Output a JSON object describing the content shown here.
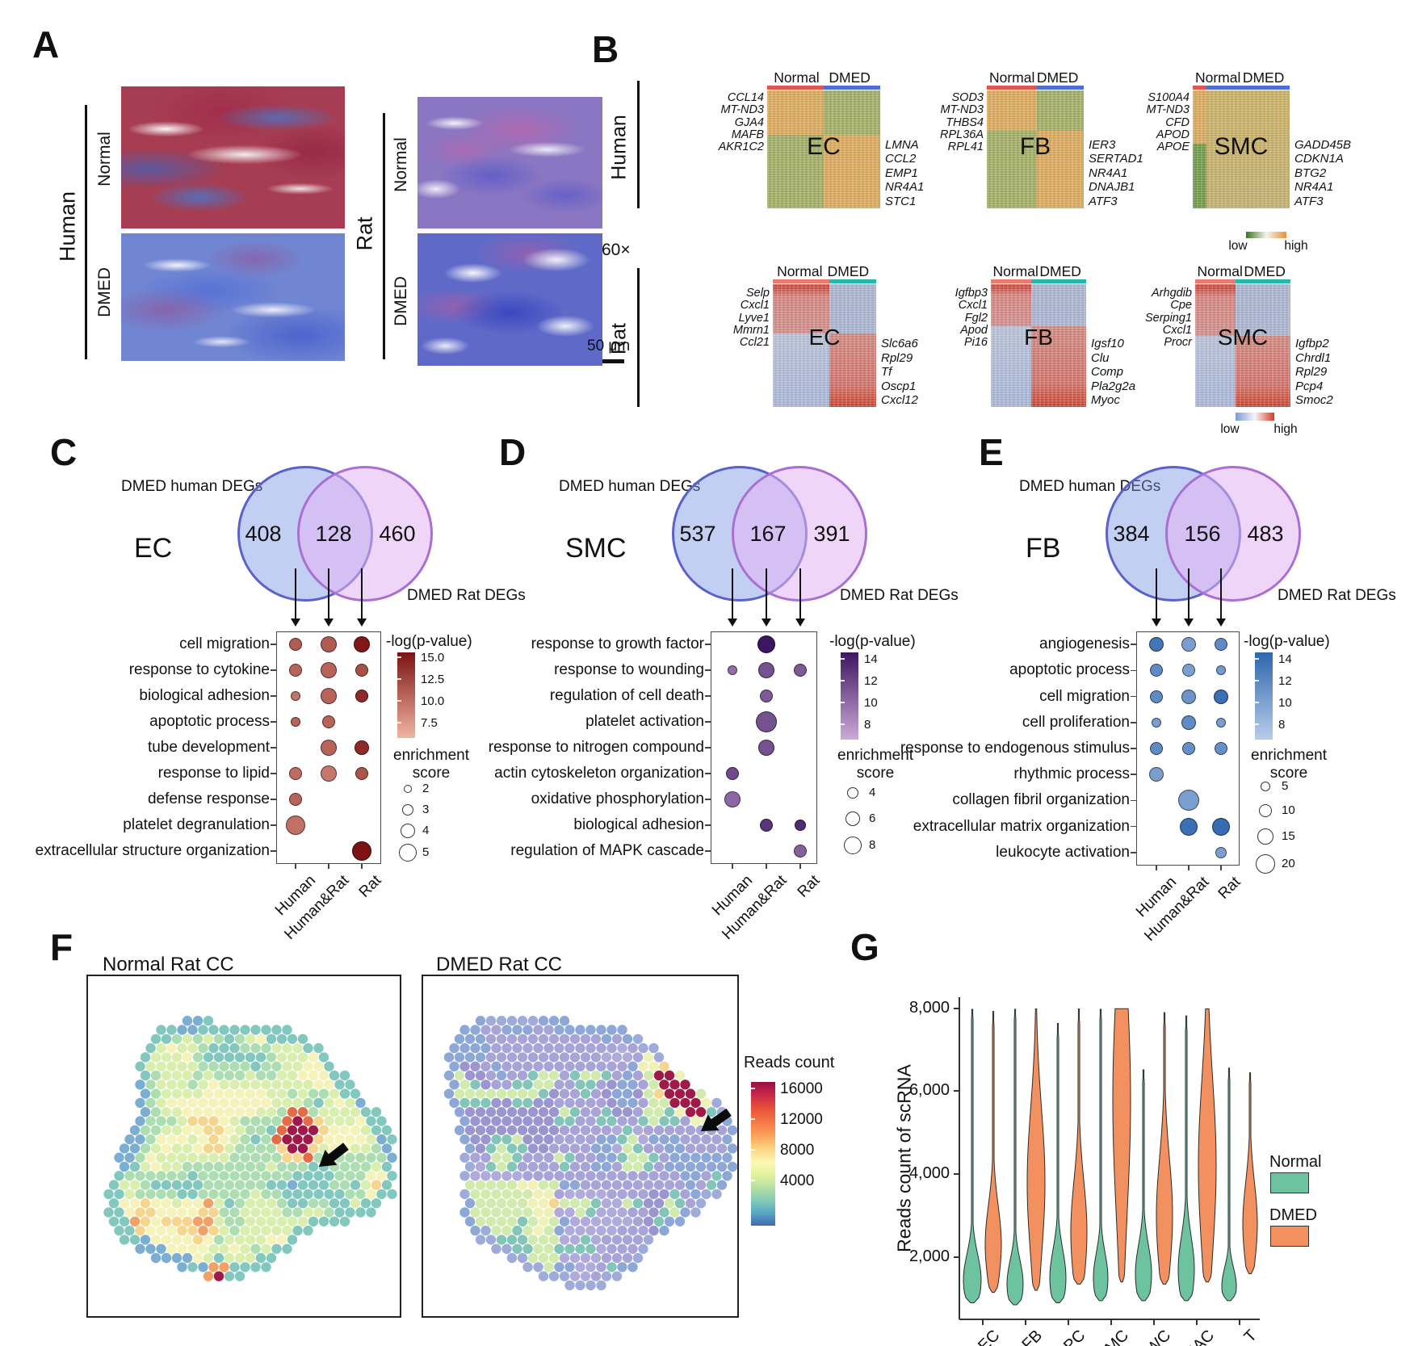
{
  "panel_a": {
    "label": "A",
    "species": [
      {
        "name": "Human",
        "rows": [
          "Normal",
          "DMED"
        ]
      },
      {
        "name": "Rat",
        "rows": [
          "Normal",
          "DMED"
        ]
      }
    ],
    "magnification": "60×",
    "scale_bar": "50 μm"
  },
  "panel_b": {
    "label": "B",
    "species": [
      "Human",
      "Rat"
    ],
    "condition_headers": [
      "Normal",
      "DMED"
    ],
    "colorbar": {
      "low": "low",
      "high": "high"
    },
    "human_heatmaps": [
      {
        "name": "EC",
        "left_genes": [
          "CCL14",
          "MT-ND3",
          "GJA4",
          "MAFB",
          "AKR1C2"
        ],
        "right_genes": [
          "LMNA",
          "CCL2",
          "EMP1",
          "NR4A1",
          "STC1"
        ]
      },
      {
        "name": "FB",
        "left_genes": [
          "SOD3",
          "MT-ND3",
          "THBS4",
          "RPL36A",
          "RPL41"
        ],
        "right_genes": [
          "IER3",
          "SERTAD1",
          "NR4A1",
          "DNAJB1",
          "ATF3"
        ]
      },
      {
        "name": "SMC",
        "left_genes": [
          "S100A4",
          "MT-ND3",
          "CFD",
          "APOD",
          "APOE"
        ],
        "right_genes": [
          "GADD45B",
          "CDKN1A",
          "BTG2",
          "NR4A1",
          "ATF3"
        ]
      }
    ],
    "rat_heatmaps": [
      {
        "name": "EC",
        "left_genes": [
          "Selp",
          "Cxcl1",
          "Lyve1",
          "Mmrn1",
          "Ccl21"
        ],
        "right_genes": [
          "Slc6a6",
          "Rpl29",
          "Tf",
          "Oscp1",
          "Cxcl12"
        ]
      },
      {
        "name": "FB",
        "left_genes": [
          "Igfbp3",
          "Cxcl1",
          "Fgl2",
          "Apod",
          "Pi16"
        ],
        "right_genes": [
          "Igsf10",
          "Clu",
          "Comp",
          "Pla2g2a",
          "Myoc"
        ]
      },
      {
        "name": "SMC",
        "left_genes": [
          "Arhgdib",
          "Cpe",
          "Serping1",
          "Cxcl1",
          "Procr"
        ],
        "right_genes": [
          "Igfbp2",
          "Chrdl1",
          "Rpl29",
          "Pcp4",
          "Smoc2"
        ]
      }
    ],
    "colors": {
      "human_normal_strip": "#e2574d",
      "human_dmed_strip": "#4d6fd6",
      "rat_normal_strip": "#ed7a6d",
      "rat_dmed_strip": "#26b8ad",
      "human_low": "#38761d",
      "human_high": "#e69138",
      "rat_low": "#7b9bd2",
      "rat_high": "#d93a25"
    }
  },
  "go_panels": [
    {
      "label": "C",
      "cell_type": "EC",
      "venn": {
        "human_label": "DMED human DEGs",
        "rat_label": "DMED Rat DEGs",
        "human_only": "408",
        "shared": "128",
        "rat_only": "460"
      },
      "columns": [
        "Human",
        "Human&Rat",
        "Rat"
      ],
      "pvalue_legend": {
        "title": "-log(p-value)",
        "ticks": [
          "15.0",
          "12.5",
          "10.0",
          "7.5"
        ]
      },
      "enrichment_legend": {
        "title_line1": "enrichment",
        "title_line2": "score",
        "items": [
          "2",
          "3",
          "4",
          "5"
        ]
      },
      "dot_colors": {
        "light": "#f2b5a0",
        "dark": "#7c1214"
      }
    },
    {
      "label": "D",
      "cell_type": "SMC",
      "venn": {
        "human_label": "DMED human DEGs",
        "rat_label": "DMED Rat DEGs",
        "human_only": "537",
        "shared": "167",
        "rat_only": "391"
      },
      "columns": [
        "Human",
        "Human&Rat",
        "Rat"
      ],
      "pvalue_legend": {
        "title": "-log(p-value)",
        "ticks": [
          "14",
          "12",
          "10",
          "8"
        ]
      },
      "enrichment_legend": {
        "title_line1": "enrichment",
        "title_line2": "score",
        "items": [
          "4",
          "6",
          "8"
        ]
      },
      "dot_colors": {
        "light": "#cdaad9",
        "dark": "#3c1660"
      }
    },
    {
      "label": "E",
      "cell_type": "FB",
      "venn": {
        "human_label": "DMED human DEGs",
        "rat_label": "DMED Rat DEGs",
        "human_only": "384",
        "shared": "156",
        "rat_only": "483"
      },
      "columns": [
        "Human",
        "Human&Rat",
        "Rat"
      ],
      "pvalue_legend": {
        "title": "-log(p-value)",
        "ticks": [
          "14",
          "12",
          "10",
          "8"
        ]
      },
      "enrichment_legend": {
        "title_line1": "enrichment",
        "title_line2": "score",
        "items": [
          "5",
          "10",
          "15",
          "20"
        ]
      },
      "dot_colors": {
        "light": "#b9cde9",
        "dark": "#2e66ae"
      }
    }
  ],
  "panel_f": {
    "label": "F",
    "maps": [
      {
        "title": "Normal Rat CC"
      },
      {
        "title": "DMED Rat CC"
      }
    ],
    "colorbar": {
      "title": "Reads count",
      "ticks": [
        "16000",
        "12000",
        "8000",
        "4000"
      ]
    },
    "palette_normal": [
      "#74aacf",
      "#7cc5ba",
      "#a9dcae",
      "#d8edaa",
      "#f4f2b6",
      "#f6d489",
      "#ef9c5e",
      "#e2633c"
    ],
    "palette_dmed": [
      "#968fcd",
      "#a39fd6",
      "#ada6da",
      "#87a3d5",
      "#7cc3b5",
      "#cdeaa9",
      "#eff0b3"
    ],
    "cluster_color": "#9a0e3e",
    "spot_red": "#d6452f"
  },
  "panel_g": {
    "label": "G",
    "y_axis_label": "Reads count of scRNA",
    "y_ticks": [
      "8,000",
      "6,000",
      "4,000",
      "2,000"
    ],
    "categories": [
      "EC",
      "FB",
      "PC",
      "SMC",
      "SWC",
      "MAC",
      "T"
    ],
    "legend": {
      "normal": "Normal",
      "dmed": "DMED"
    },
    "colors": {
      "normal": "#6dc3a0",
      "dmed": "#f2915f"
    }
  },
  "chart_data": [
    {
      "type": "venn",
      "panel": "C",
      "cell_type": "EC",
      "sets": [
        "DMED human DEGs",
        "DMED Rat DEGs"
      ],
      "values": {
        "human_only": 408,
        "shared": 128,
        "rat_only": 460
      }
    },
    {
      "type": "venn",
      "panel": "D",
      "cell_type": "SMC",
      "sets": [
        "DMED human DEGs",
        "DMED Rat DEGs"
      ],
      "values": {
        "human_only": 537,
        "shared": 167,
        "rat_only": 391
      }
    },
    {
      "type": "venn",
      "panel": "E",
      "cell_type": "FB",
      "sets": [
        "DMED human DEGs",
        "DMED Rat DEGs"
      ],
      "values": {
        "human_only": 384,
        "shared": 156,
        "rat_only": 483
      }
    },
    {
      "type": "dotplot",
      "panel": "C",
      "categories": [
        "Human",
        "Human&Rat",
        "Rat"
      ],
      "size_meaning": "enrichment score (radius px approx)",
      "color_meaning": "-log(p-value) intensity 0-1",
      "rows": [
        {
          "term": "cell migration",
          "dots": [
            [
              8,
              0.55
            ],
            [
              10,
              0.55
            ],
            [
              10,
              0.97
            ]
          ]
        },
        {
          "term": "response to cytokine",
          "dots": [
            [
              8,
              0.5
            ],
            [
              10,
              0.5
            ],
            [
              8,
              0.62
            ]
          ]
        },
        {
          "term": "biological adhesion",
          "dots": [
            [
              6,
              0.4
            ],
            [
              10,
              0.5
            ],
            [
              8,
              0.85
            ]
          ]
        },
        {
          "term": "apoptotic process",
          "dots": [
            [
              6,
              0.5
            ],
            [
              8,
              0.5
            ],
            null
          ]
        },
        {
          "term": "tube development",
          "dots": [
            null,
            [
              10,
              0.5
            ],
            [
              9,
              0.85
            ]
          ]
        },
        {
          "term": "response to lipid",
          "dots": [
            [
              8,
              0.45
            ],
            [
              10,
              0.38
            ],
            [
              8,
              0.6
            ]
          ]
        },
        {
          "term": "defense response",
          "dots": [
            [
              8,
              0.5
            ],
            null,
            null
          ]
        },
        {
          "term": "platelet degranulation",
          "dots": [
            [
              12,
              0.42
            ],
            null,
            null
          ]
        },
        {
          "term": "extracellular structure organization",
          "dots": [
            null,
            null,
            [
              12,
              1.0
            ]
          ]
        }
      ]
    },
    {
      "type": "dotplot",
      "panel": "D",
      "categories": [
        "Human",
        "Human&Rat",
        "Rat"
      ],
      "size_meaning": "enrichment score (radius px approx)",
      "color_meaning": "-log(p-value) intensity 0-1",
      "rows": [
        {
          "term": "response to growth factor",
          "dots": [
            null,
            [
              11,
              1.0
            ],
            null
          ]
        },
        {
          "term": "response to wounding",
          "dots": [
            [
              6,
              0.4
            ],
            [
              10,
              0.6
            ],
            [
              8,
              0.55
            ]
          ]
        },
        {
          "term": "regulation of cell death",
          "dots": [
            null,
            [
              8,
              0.55
            ],
            null
          ]
        },
        {
          "term": "platelet activation",
          "dots": [
            null,
            [
              13,
              0.6
            ],
            null
          ]
        },
        {
          "term": "response to nitrogen compound",
          "dots": [
            null,
            [
              10,
              0.6
            ],
            null
          ]
        },
        {
          "term": "actin cytoskeleton organization",
          "dots": [
            [
              8,
              0.65
            ],
            null,
            null
          ]
        },
        {
          "term": "oxidative phosphorylation",
          "dots": [
            [
              10,
              0.45
            ],
            null,
            null
          ]
        },
        {
          "term": "biological adhesion",
          "dots": [
            null,
            [
              8,
              0.8
            ],
            [
              7,
              0.85
            ]
          ]
        },
        {
          "term": "regulation of MAPK cascade",
          "dots": [
            null,
            null,
            [
              8,
              0.5
            ]
          ]
        }
      ]
    },
    {
      "type": "dotplot",
      "panel": "E",
      "categories": [
        "Human",
        "Human&Rat",
        "Rat"
      ],
      "size_meaning": "enrichment score (radius px approx)",
      "color_meaning": "-log(p-value) intensity 0-1",
      "rows": [
        {
          "term": "angiogenesis",
          "dots": [
            [
              9,
              0.85
            ],
            [
              9,
              0.45
            ],
            [
              8,
              0.65
            ]
          ]
        },
        {
          "term": "apoptotic process",
          "dots": [
            [
              8,
              0.65
            ],
            [
              8,
              0.45
            ],
            [
              6,
              0.5
            ]
          ]
        },
        {
          "term": "cell migration",
          "dots": [
            [
              8,
              0.65
            ],
            [
              9,
              0.55
            ],
            [
              9,
              0.9
            ]
          ]
        },
        {
          "term": "cell proliferation",
          "dots": [
            [
              6,
              0.45
            ],
            [
              9,
              0.65
            ],
            [
              6,
              0.45
            ]
          ]
        },
        {
          "term": "response to endogenous stimulus",
          "dots": [
            [
              8,
              0.65
            ],
            [
              8,
              0.6
            ],
            [
              8,
              0.6
            ]
          ]
        },
        {
          "term": "rhythmic process",
          "dots": [
            [
              9,
              0.45
            ],
            null,
            null
          ]
        },
        {
          "term": "collagen fibril organization",
          "dots": [
            null,
            [
              13,
              0.45
            ],
            null
          ]
        },
        {
          "term": "extracellular matrix organization",
          "dots": [
            null,
            [
              11,
              0.9
            ],
            [
              11,
              0.95
            ]
          ]
        },
        {
          "term": "leukocyte activation",
          "dots": [
            null,
            null,
            [
              7,
              0.45
            ]
          ]
        }
      ]
    },
    {
      "type": "heatmap",
      "subtype": "spatial-hex",
      "panel": "F",
      "titles": [
        "Normal Rat CC",
        "DMED Rat CC"
      ],
      "colorbar": {
        "label": "Reads count",
        "ticks": [
          16000,
          12000,
          8000,
          4000
        ]
      }
    },
    {
      "type": "violin",
      "panel": "G",
      "ylabel": "Reads count of scRNA",
      "ylim": [
        800,
        8000
      ],
      "categories": [
        "EC",
        "FB",
        "PC",
        "SMC",
        "SWC",
        "MAC",
        "T"
      ],
      "series": [
        "Normal",
        "DMED"
      ],
      "violins": [
        {
          "category": "EC",
          "normal": {
            "max": 7980,
            "peak": 1450,
            "spread": 620,
            "min": 900,
            "w": 11
          },
          "dmed": {
            "max": 7930,
            "peak": 2300,
            "spread": 950,
            "min": 1150,
            "w": 10
          }
        },
        {
          "category": "FB",
          "normal": {
            "max": 7980,
            "peak": 1350,
            "spread": 580,
            "min": 850,
            "w": 10
          },
          "dmed": {
            "max": 7990,
            "peak": 3800,
            "spread": 1800,
            "min": 1200,
            "w": 11
          }
        },
        {
          "category": "PC",
          "normal": {
            "max": 7640,
            "peak": 1500,
            "spread": 680,
            "min": 900,
            "w": 10
          },
          "dmed": {
            "max": 7990,
            "peak": 2600,
            "spread": 1250,
            "min": 1350,
            "w": 10
          }
        },
        {
          "category": "SMC",
          "normal": {
            "max": 7980,
            "peak": 1500,
            "spread": 600,
            "min": 950,
            "w": 9
          },
          "dmed": {
            "max": 7995,
            "peak": 5800,
            "spread": 2800,
            "min": 1400,
            "w": 11
          }
        },
        {
          "category": "SWC",
          "normal": {
            "max": 6520,
            "peak": 1600,
            "spread": 700,
            "min": 950,
            "w": 10
          },
          "dmed": {
            "max": 7900,
            "peak": 3000,
            "spread": 1400,
            "min": 1350,
            "w": 10
          }
        },
        {
          "category": "MAC",
          "normal": {
            "max": 7820,
            "peak": 1700,
            "spread": 800,
            "min": 950,
            "w": 10
          },
          "dmed": {
            "max": 7990,
            "peak": 4200,
            "spread": 2100,
            "min": 1400,
            "w": 11
          }
        },
        {
          "category": "T",
          "normal": {
            "max": 6560,
            "peak": 1300,
            "spread": 450,
            "min": 950,
            "w": 9
          },
          "dmed": {
            "max": 6450,
            "peak": 2800,
            "spread": 1000,
            "min": 1600,
            "w": 9
          }
        }
      ]
    }
  ]
}
